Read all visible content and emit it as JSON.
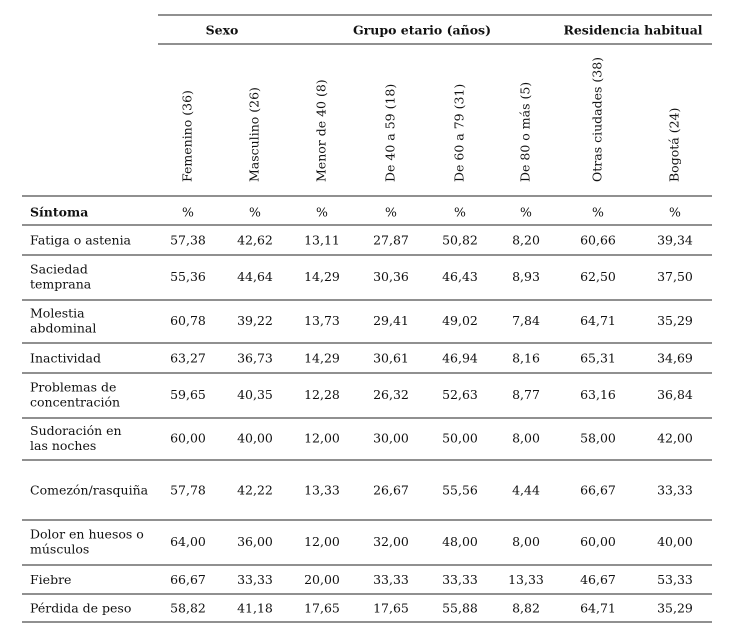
{
  "header": {
    "groups": [
      "Sexo",
      "Grupo etario (años)",
      "Residencia habitual"
    ],
    "columns": [
      "Femenino (36)",
      "Masculino (26)",
      "Menor de 40 (8)",
      "De 40 a 59 (18)",
      "De 60 a 79 (31)",
      "De 80 o más (5)",
      "Otras ciudades (38)",
      "Bogotá (24)"
    ],
    "symptom_label": "Síntoma",
    "units": [
      "%",
      "%",
      "%",
      "%",
      "%",
      "%",
      "%",
      "%"
    ]
  },
  "table": {
    "rows": [
      {
        "label": [
          "Fatiga o astenia"
        ],
        "values": [
          "57,38",
          "42,62",
          "13,11",
          "27,87",
          "50,82",
          "8,20",
          "60,66",
          "39,34"
        ]
      },
      {
        "label": [
          "Saciedad",
          "temprana"
        ],
        "values": [
          "55,36",
          "44,64",
          "14,29",
          "30,36",
          "46,43",
          "8,93",
          "62,50",
          "37,50"
        ]
      },
      {
        "label": [
          "Molestia",
          "abdominal"
        ],
        "values": [
          "60,78",
          "39,22",
          "13,73",
          "29,41",
          "49,02",
          "7,84",
          "64,71",
          "35,29"
        ]
      },
      {
        "label": [
          "Inactividad"
        ],
        "values": [
          "63,27",
          "36,73",
          "14,29",
          "30,61",
          "46,94",
          "8,16",
          "65,31",
          "34,69"
        ]
      },
      {
        "label": [
          "Problemas de",
          "concentración"
        ],
        "values": [
          "59,65",
          "40,35",
          "12,28",
          "26,32",
          "52,63",
          "8,77",
          "63,16",
          "36,84"
        ]
      },
      {
        "label": [
          "Sudoración en",
          "las noches"
        ],
        "values": [
          "60,00",
          "40,00",
          "12,00",
          "30,00",
          "50,00",
          "8,00",
          "58,00",
          "42,00"
        ]
      },
      {
        "label": [
          "Comezón/rasquiña"
        ],
        "values": [
          "57,78",
          "42,22",
          "13,33",
          "26,67",
          "55,56",
          "4,44",
          "66,67",
          "33,33"
        ]
      },
      {
        "label": [
          "Dolor en huesos o",
          "músculos"
        ],
        "values": [
          "64,00",
          "36,00",
          "12,00",
          "32,00",
          "48,00",
          "8,00",
          "60,00",
          "40,00"
        ]
      },
      {
        "label": [
          "Fiebre"
        ],
        "values": [
          "66,67",
          "33,33",
          "20,00",
          "33,33",
          "33,33",
          "13,33",
          "46,67",
          "53,33"
        ]
      },
      {
        "label": [
          "Pérdida de peso"
        ],
        "values": [
          "58,82",
          "41,18",
          "17,65",
          "17,65",
          "55,88",
          "8,82",
          "64,71",
          "35,29"
        ]
      }
    ]
  }
}
